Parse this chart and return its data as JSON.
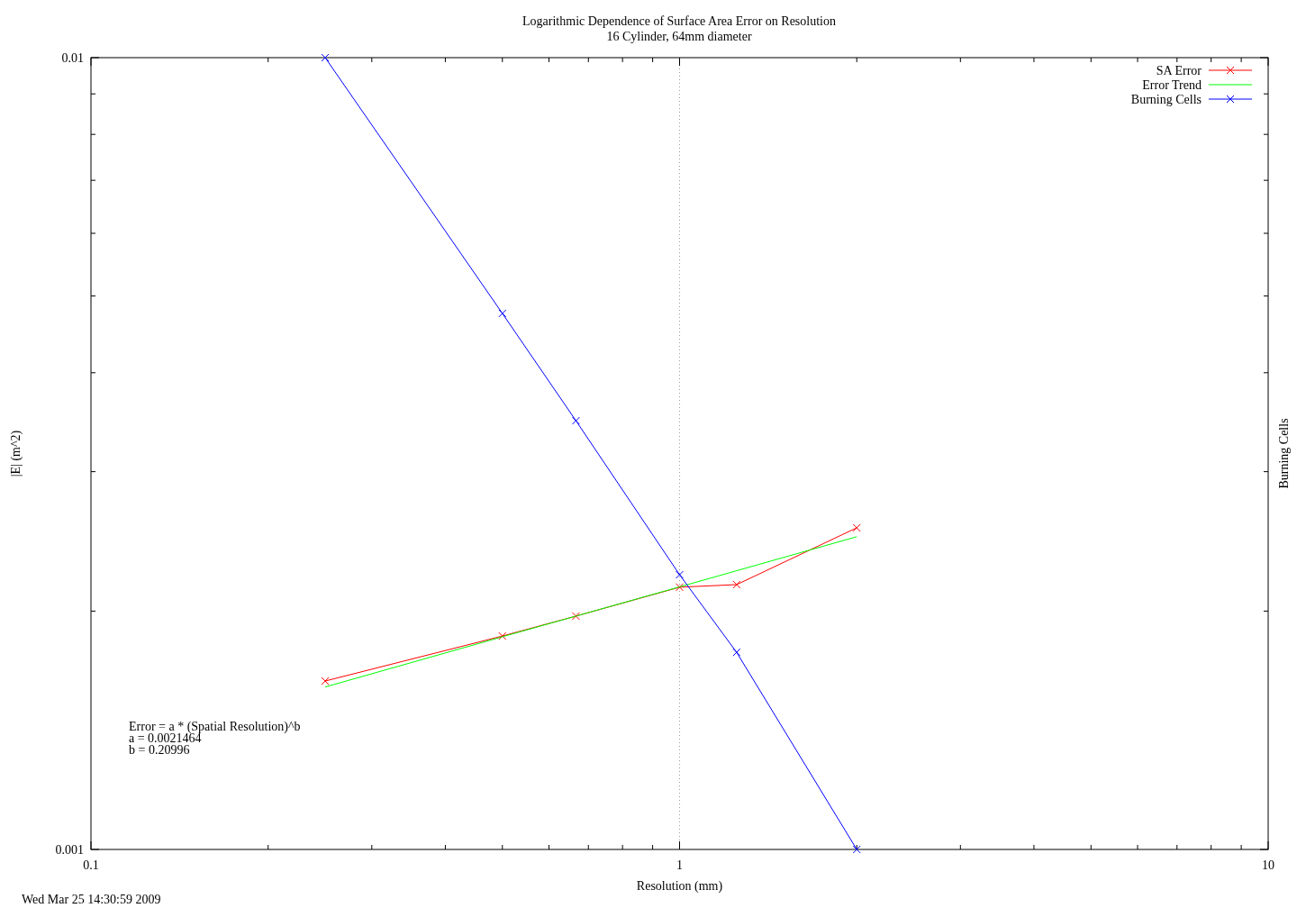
{
  "chart_data": {
    "type": "line",
    "title": "Logarithmic Dependence of Surface Area Error on Resolution",
    "subtitle": "16 Cylinder, 64mm diameter",
    "xlabel": "Resolution (mm)",
    "ylabel": "|E| (m^2)",
    "y2label": "Burning Cells",
    "log": "xy",
    "xlim": [
      0.1,
      10
    ],
    "ylim": [
      0.001,
      0.01
    ],
    "xticks": [
      0.1,
      {
        "value": 0.2,
        "label": null
      },
      {
        "value": 0.3,
        "label": null
      },
      {
        "value": 0.4,
        "label": null
      },
      {
        "value": 0.5,
        "label": null
      },
      {
        "value": 0.6,
        "label": null
      },
      {
        "value": 0.7,
        "label": null
      },
      {
        "value": 0.8,
        "label": null
      },
      {
        "value": 0.9,
        "label": null
      },
      1,
      {
        "value": 2,
        "label": null
      },
      {
        "value": 3,
        "label": null
      },
      {
        "value": 4,
        "label": null
      },
      {
        "value": 5,
        "label": null
      },
      {
        "value": 6,
        "label": null
      },
      {
        "value": 7,
        "label": null
      },
      {
        "value": 8,
        "label": null
      },
      {
        "value": 9,
        "label": null
      },
      10
    ],
    "yticks": [
      0.001,
      {
        "value": 0.002,
        "label": null
      },
      {
        "value": 0.003,
        "label": null
      },
      {
        "value": 0.004,
        "label": null
      },
      {
        "value": 0.005,
        "label": null
      },
      {
        "value": 0.006,
        "label": null
      },
      {
        "value": 0.007,
        "label": null
      },
      {
        "value": 0.008,
        "label": null
      },
      {
        "value": 0.009,
        "label": null
      },
      0.01
    ],
    "grid": "x",
    "legend": "top right",
    "x": [
      0.25,
      0.5,
      0.6667,
      1,
      1.25,
      2
    ],
    "series": [
      {
        "name": "SA Error",
        "color": "#ff0000",
        "marker": "cross",
        "values": [
          0.001632,
          0.00186,
          0.001971,
          0.002144,
          0.00216,
          0.002548
        ]
      },
      {
        "name": "Error Trend",
        "color": "#00ff00",
        "marker": "none",
        "values": [
          0.001604,
          0.001856,
          0.001971,
          0.002146,
          0.002249,
          0.002483
        ]
      },
      {
        "name": "Burning Cells",
        "color": "#0000ff",
        "marker": "cross",
        "values": [
          0.01,
          0.004753,
          0.003479,
          0.002223,
          0.001774,
          0.001
        ]
      }
    ],
    "annotations": [
      "Error = a * (Spatial Resolution)^b",
      "a = 0.0021464",
      "b = 0.20996",
      "Wed Mar 25 14:30:59 2009"
    ]
  }
}
